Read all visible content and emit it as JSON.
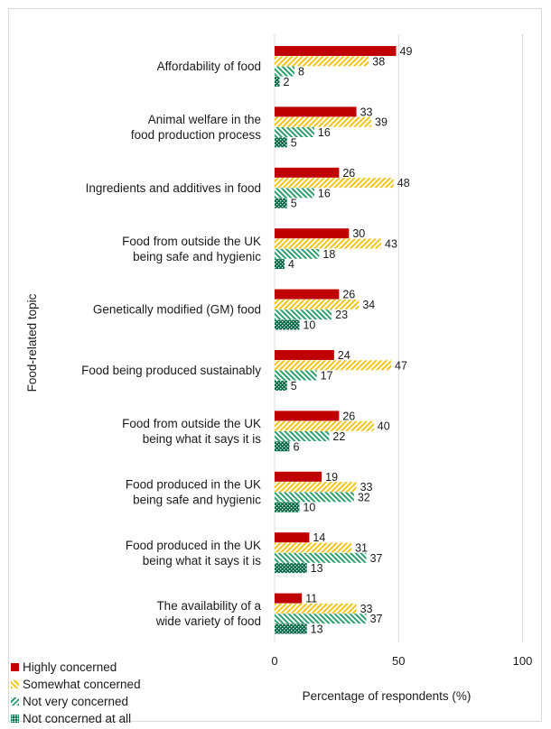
{
  "chart_data": {
    "type": "bar",
    "orientation": "horizontal",
    "title": "",
    "xlabel": "Percentage of respondents (%)",
    "ylabel": "Food-related topic",
    "xlim": [
      0,
      100
    ],
    "xticks": [
      0,
      50,
      100
    ],
    "grid": true,
    "legend_position": "bottom-left",
    "categories": [
      [
        "Affordability of food"
      ],
      [
        "Animal welfare in the",
        "food production process"
      ],
      [
        "Ingredients and additives in food"
      ],
      [
        "Food from outside the UK",
        "being safe and hygienic"
      ],
      [
        "Genetically modified (GM) food"
      ],
      [
        "Food being produced sustainably"
      ],
      [
        "Food from outside the UK",
        "being what it says it is"
      ],
      [
        "Food produced in the UK",
        "being safe and hygienic"
      ],
      [
        "Food produced in the UK",
        "being what it says it is"
      ],
      [
        "The availability of a",
        "wide variety of food"
      ]
    ],
    "series": [
      {
        "name": "Highly concerned",
        "color": "#c00000",
        "pattern": "solid",
        "values": [
          49,
          33,
          26,
          30,
          26,
          24,
          26,
          19,
          14,
          11
        ]
      },
      {
        "name": "Somewhat concerned",
        "color": "#f0c419",
        "pattern": "diagonal-stripes",
        "values": [
          38,
          39,
          48,
          43,
          34,
          47,
          40,
          33,
          31,
          33
        ]
      },
      {
        "name": "Not very concerned",
        "color": "#2e9e6e",
        "pattern": "diagonal-stripes",
        "values": [
          8,
          16,
          16,
          18,
          23,
          17,
          22,
          32,
          37,
          37
        ]
      },
      {
        "name": "Not concerned at all",
        "color": "#006b45",
        "pattern": "dots",
        "values": [
          2,
          5,
          5,
          4,
          10,
          5,
          6,
          10,
          13,
          13
        ]
      }
    ]
  }
}
